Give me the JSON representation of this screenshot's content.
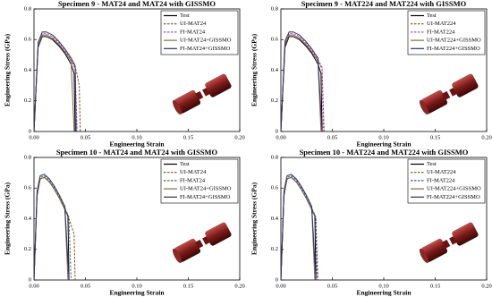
{
  "chart_data": [
    {
      "type": "line",
      "title": "Specimen 9 - MAT24 and MAT24 with GISSMO",
      "x_label": "Engineering Strain",
      "y_label": "Engineering Stress (GPa)",
      "xlim": [
        0,
        0.2
      ],
      "ylim": [
        0,
        0.8
      ],
      "xticks": [
        {
          "value": 0,
          "label": "0.00"
        },
        {
          "value": 0.05,
          "label": "0.05"
        },
        {
          "value": 0.1,
          "label": "0.10"
        },
        {
          "value": 0.15,
          "label": "0.15"
        },
        {
          "value": 0.2,
          "label": "0.20"
        }
      ],
      "yticks": [
        0,
        0.2,
        0.4,
        0.6,
        0.8
      ],
      "legend": "upper right",
      "series": [
        {
          "name": "Test",
          "color": "#000000",
          "dash": false,
          "x": [
            0,
            0.004,
            0.008,
            0.012,
            0.018,
            0.024,
            0.03,
            0.036,
            0.039,
            0.04
          ],
          "values": [
            0,
            0.55,
            0.62,
            0.62,
            0.6,
            0.56,
            0.51,
            0.44,
            0.38,
            0
          ]
        },
        {
          "name": "UI-MAT24",
          "color": "#8b4a1e",
          "dash": true,
          "x": [
            0,
            0.004,
            0.008,
            0.012,
            0.018,
            0.024,
            0.03,
            0.036,
            0.041,
            0.044,
            0.045
          ],
          "values": [
            0,
            0.56,
            0.63,
            0.63,
            0.61,
            0.57,
            0.52,
            0.46,
            0.4,
            0.3,
            0
          ]
        },
        {
          "name": "FI-MAT24",
          "color": "#b04fb0",
          "dash": true,
          "x": [
            0,
            0.004,
            0.008,
            0.012,
            0.018,
            0.024,
            0.03,
            0.036,
            0.04,
            0.042
          ],
          "values": [
            0,
            0.57,
            0.64,
            0.64,
            0.62,
            0.58,
            0.53,
            0.47,
            0.42,
            0
          ]
        },
        {
          "name": "UI-MAT24+GISSMO",
          "color": "#8b6b45",
          "dash": false,
          "x": [
            0,
            0.004,
            0.008,
            0.012,
            0.018,
            0.024,
            0.03,
            0.036,
            0.039
          ],
          "values": [
            0,
            0.56,
            0.63,
            0.63,
            0.61,
            0.57,
            0.52,
            0.46,
            0
          ]
        },
        {
          "name": "FI-MAT24+GISSMO",
          "color": "#2a2f6e",
          "dash": false,
          "x": [
            0,
            0.004,
            0.008,
            0.012,
            0.018,
            0.024,
            0.03,
            0.036,
            0.04,
            0.041
          ],
          "values": [
            0,
            0.58,
            0.65,
            0.65,
            0.63,
            0.59,
            0.54,
            0.48,
            0.43,
            0
          ]
        }
      ]
    },
    {
      "type": "line",
      "title": "Specimen 9 - MAT224 and MAT224 with GISSMO",
      "x_label": "Engineering Strain",
      "y_label": "Engineering Stress (GPa)",
      "xlim": [
        0,
        0.2
      ],
      "ylim": [
        0,
        0.8
      ],
      "xticks": [
        {
          "value": 0,
          "label": "0.00"
        },
        {
          "value": 0.05,
          "label": "0.05"
        },
        {
          "value": 0.1,
          "label": "0.10"
        },
        {
          "value": 0.15,
          "label": "0.15"
        },
        {
          "value": 0.2,
          "label": "0.20"
        }
      ],
      "yticks": [
        0,
        0.2,
        0.4,
        0.6,
        0.8
      ],
      "legend": "upper right",
      "series": [
        {
          "name": "Test",
          "color": "#000000",
          "dash": false,
          "x": [
            0,
            0.004,
            0.008,
            0.012,
            0.018,
            0.024,
            0.03,
            0.036,
            0.039,
            0.04
          ],
          "values": [
            0,
            0.55,
            0.62,
            0.62,
            0.6,
            0.56,
            0.51,
            0.44,
            0.38,
            0
          ]
        },
        {
          "name": "UI-MAT224",
          "color": "#8b4a1e",
          "dash": true,
          "x": [
            0,
            0.004,
            0.008,
            0.012,
            0.018,
            0.024,
            0.03,
            0.036,
            0.04,
            0.042
          ],
          "values": [
            0,
            0.57,
            0.63,
            0.63,
            0.61,
            0.57,
            0.52,
            0.46,
            0.41,
            0
          ]
        },
        {
          "name": "FI-MAT224",
          "color": "#b04fb0",
          "dash": true,
          "x": [
            0,
            0.004,
            0.008,
            0.012,
            0.018,
            0.024,
            0.03,
            0.036,
            0.04,
            0.041
          ],
          "values": [
            0,
            0.58,
            0.64,
            0.64,
            0.62,
            0.58,
            0.53,
            0.47,
            0.42,
            0
          ]
        },
        {
          "name": "UI-MAT224+GISSMO",
          "color": "#8b6b45",
          "dash": false,
          "x": [
            0,
            0.004,
            0.008,
            0.012,
            0.018,
            0.024,
            0.03,
            0.036,
            0.039
          ],
          "values": [
            0,
            0.57,
            0.63,
            0.63,
            0.61,
            0.57,
            0.52,
            0.46,
            0
          ]
        },
        {
          "name": "FI-MAT224+GISSMO",
          "color": "#2a2f6e",
          "dash": false,
          "x": [
            0,
            0.004,
            0.008,
            0.012,
            0.018,
            0.024,
            0.03,
            0.036,
            0.04
          ],
          "values": [
            0,
            0.59,
            0.65,
            0.65,
            0.63,
            0.59,
            0.54,
            0.48,
            0
          ]
        }
      ]
    },
    {
      "type": "line",
      "title": "Specimen 10 - MAT24 and MAT24 with GISSMO",
      "x_label": "Engineering Strain",
      "y_label": "Engineering Stress (GPa)",
      "xlim": [
        0,
        0.2
      ],
      "ylim": [
        0,
        0.8
      ],
      "xticks": [
        {
          "value": 0,
          "label": "0.00"
        },
        {
          "value": 0.05,
          "label": "0.05"
        },
        {
          "value": 0.1,
          "label": "0.10"
        },
        {
          "value": 0.15,
          "label": "0.15"
        },
        {
          "value": 0.2,
          "label": "0.20"
        }
      ],
      "yticks": [
        0,
        0.2,
        0.4,
        0.6,
        0.8
      ],
      "legend": "upper right",
      "series": [
        {
          "name": "Test",
          "color": "#000000",
          "dash": false,
          "x": [
            0,
            0.003,
            0.006,
            0.01,
            0.015,
            0.02,
            0.025,
            0.03,
            0.033,
            0.034
          ],
          "values": [
            0,
            0.55,
            0.66,
            0.67,
            0.64,
            0.59,
            0.53,
            0.46,
            0.42,
            0
          ]
        },
        {
          "name": "UI-MAT24",
          "color": "#8b4a1e",
          "dash": true,
          "x": [
            0,
            0.003,
            0.006,
            0.01,
            0.015,
            0.02,
            0.025,
            0.03,
            0.035,
            0.039,
            0.04
          ],
          "values": [
            0,
            0.56,
            0.66,
            0.67,
            0.64,
            0.59,
            0.53,
            0.46,
            0.38,
            0.3,
            0
          ]
        },
        {
          "name": "FI-MAT24",
          "color": "#3a7a5a",
          "dash": true,
          "x": [
            0,
            0.003,
            0.006,
            0.01,
            0.015,
            0.02,
            0.025,
            0.03,
            0.034,
            0.036
          ],
          "values": [
            0,
            0.57,
            0.67,
            0.68,
            0.65,
            0.6,
            0.54,
            0.47,
            0.41,
            0
          ]
        },
        {
          "name": "UI-MAT24+GISSMO",
          "color": "#8b6b45",
          "dash": false,
          "x": [
            0,
            0.003,
            0.006,
            0.01,
            0.015,
            0.02,
            0.025,
            0.03,
            0.033
          ],
          "values": [
            0,
            0.56,
            0.66,
            0.67,
            0.64,
            0.59,
            0.53,
            0.46,
            0
          ]
        },
        {
          "name": "FI-MAT24+GISSMO",
          "color": "#2a2f6e",
          "dash": false,
          "x": [
            0,
            0.003,
            0.006,
            0.01,
            0.015,
            0.02,
            0.025,
            0.03,
            0.034
          ],
          "values": [
            0,
            0.58,
            0.68,
            0.69,
            0.66,
            0.61,
            0.55,
            0.48,
            0
          ]
        }
      ]
    },
    {
      "type": "line",
      "title": "Specimen 10 - MAT224 and MAT224 with GISSMO",
      "x_label": "Engineering Strain",
      "y_label": "Engineering Stress (GPa)",
      "xlim": [
        0,
        0.2
      ],
      "ylim": [
        0,
        0.8
      ],
      "xticks": [
        {
          "value": 0,
          "label": "0.00"
        },
        {
          "value": 0.05,
          "label": "0.05"
        },
        {
          "value": 0.1,
          "label": "0.10"
        },
        {
          "value": 0.15,
          "label": "0.15"
        },
        {
          "value": 0.2,
          "label": "0.20"
        }
      ],
      "yticks": [
        0,
        0.2,
        0.4,
        0.6,
        0.8
      ],
      "legend": "upper right",
      "series": [
        {
          "name": "Test",
          "color": "#000000",
          "dash": false,
          "x": [
            0,
            0.003,
            0.006,
            0.01,
            0.015,
            0.02,
            0.025,
            0.03,
            0.033,
            0.034
          ],
          "values": [
            0,
            0.55,
            0.66,
            0.67,
            0.64,
            0.59,
            0.53,
            0.46,
            0.42,
            0
          ]
        },
        {
          "name": "UI-MAT224",
          "color": "#8b4a1e",
          "dash": true,
          "x": [
            0,
            0.003,
            0.006,
            0.01,
            0.015,
            0.02,
            0.025,
            0.03,
            0.034,
            0.036
          ],
          "values": [
            0,
            0.56,
            0.66,
            0.67,
            0.64,
            0.59,
            0.53,
            0.46,
            0.4,
            0
          ]
        },
        {
          "name": "FI-MAT224",
          "color": "#3060a0",
          "dash": true,
          "x": [
            0,
            0.003,
            0.006,
            0.01,
            0.015,
            0.02,
            0.025,
            0.03,
            0.034,
            0.035
          ],
          "values": [
            0,
            0.57,
            0.67,
            0.68,
            0.65,
            0.6,
            0.54,
            0.47,
            0.41,
            0
          ]
        },
        {
          "name": "UI-MAT224+GISSMO",
          "color": "#8b6b45",
          "dash": false,
          "x": [
            0,
            0.003,
            0.006,
            0.01,
            0.015,
            0.02,
            0.025,
            0.03,
            0.033
          ],
          "values": [
            0,
            0.56,
            0.66,
            0.67,
            0.64,
            0.59,
            0.53,
            0.46,
            0
          ]
        },
        {
          "name": "FI-MAT224+GISSMO",
          "color": "#2a2f6e",
          "dash": false,
          "x": [
            0,
            0.003,
            0.006,
            0.01,
            0.015,
            0.02,
            0.025,
            0.03,
            0.034
          ],
          "values": [
            0,
            0.58,
            0.68,
            0.69,
            0.66,
            0.61,
            0.55,
            0.48,
            0
          ]
        }
      ]
    }
  ]
}
